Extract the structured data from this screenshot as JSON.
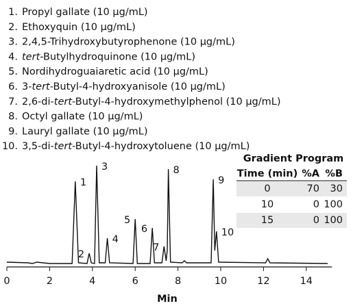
{
  "chart_data": {
    "type": "line",
    "compounds": [
      {
        "number": "1.",
        "parts": [
          "Propyl gallate (10 µg/mL)"
        ]
      },
      {
        "number": "2.",
        "parts": [
          "Ethoxyquin (10 µg/mL)"
        ]
      },
      {
        "number": "3.",
        "parts": [
          "2,4,5-Trihydroxybutyrophenone (10 µg/mL)"
        ]
      },
      {
        "number": "4.",
        "parts": [
          "",
          "tert",
          "-Butylhydroquinone (10 µg/mL)"
        ]
      },
      {
        "number": "5.",
        "parts": [
          "Nordihydroguaiaretic acid (10 µg/mL)"
        ]
      },
      {
        "number": "6.",
        "parts": [
          "3-",
          "tert",
          "-Butyl-4-hydroxyanisole (10 µg/mL)"
        ]
      },
      {
        "number": "7.",
        "parts": [
          "2,6-di-",
          "tert",
          "-Butyl-4-hydroxymethylphenol (10 µg/mL)"
        ]
      },
      {
        "number": "8.",
        "parts": [
          "Octyl gallate (10 µg/mL)"
        ]
      },
      {
        "number": "9.",
        "parts": [
          "Lauryl gallate (10 µg/mL)"
        ]
      },
      {
        "number": "10.",
        "parts": [
          "3,5-di-",
          "tert",
          "-Butyl-4-hydroxytoluene (10 µg/mL)"
        ]
      }
    ],
    "x": [
      0,
      1,
      1.2,
      1.4,
      2,
      3.05,
      3.2,
      3.35,
      3.75,
      3.85,
      3.95,
      4.1,
      4.2,
      4.32,
      4.6,
      4.7,
      4.8,
      5.9,
      6.0,
      6.1,
      6.7,
      6.8,
      6.9,
      7.25,
      7.35,
      7.45,
      7.5,
      7.55,
      7.65,
      8.2,
      8.3,
      8.4,
      9.55,
      9.65,
      9.72,
      9.8,
      9.9,
      12.1,
      12.2,
      12.3,
      15
    ],
    "values": [
      3,
      2,
      1,
      3,
      1,
      1,
      121,
      2,
      1,
      16,
      2,
      1,
      144,
      2,
      2,
      38,
      2,
      1,
      66,
      1,
      1,
      53,
      2,
      2,
      26,
      5,
      20,
      139,
      3,
      2,
      5,
      2,
      2,
      124,
      20,
      48,
      3,
      2,
      8,
      2,
      1
    ],
    "color": "#111111",
    "peaks": [
      {
        "label": "1",
        "x": 3.2,
        "y": 121
      },
      {
        "label": "2",
        "x": 3.85,
        "y": 16
      },
      {
        "label": "3",
        "x": 4.2,
        "y": 144
      },
      {
        "label": "4",
        "x": 4.7,
        "y": 38
      },
      {
        "label": "5",
        "x": 6.0,
        "y": 66
      },
      {
        "label": "6",
        "x": 6.8,
        "y": 53
      },
      {
        "label": "7",
        "x": 7.35,
        "y": 26
      },
      {
        "label": "8",
        "x": 7.55,
        "y": 139
      },
      {
        "label": "9",
        "x": 9.65,
        "y": 124
      },
      {
        "label": "10",
        "x": 9.8,
        "y": 48
      }
    ],
    "xlim": [
      0,
      15.2
    ],
    "ylim": [
      0,
      150
    ],
    "xticks": [
      0,
      2,
      4,
      6,
      8,
      10,
      12,
      14
    ],
    "xlabel": "Min",
    "gradient": {
      "title": "Gradient Program",
      "columns": [
        "Time (min)",
        "%A",
        "%B"
      ],
      "rows": [
        [
          0,
          70,
          30
        ],
        [
          10,
          0,
          100
        ],
        [
          15,
          0,
          100
        ]
      ]
    }
  }
}
